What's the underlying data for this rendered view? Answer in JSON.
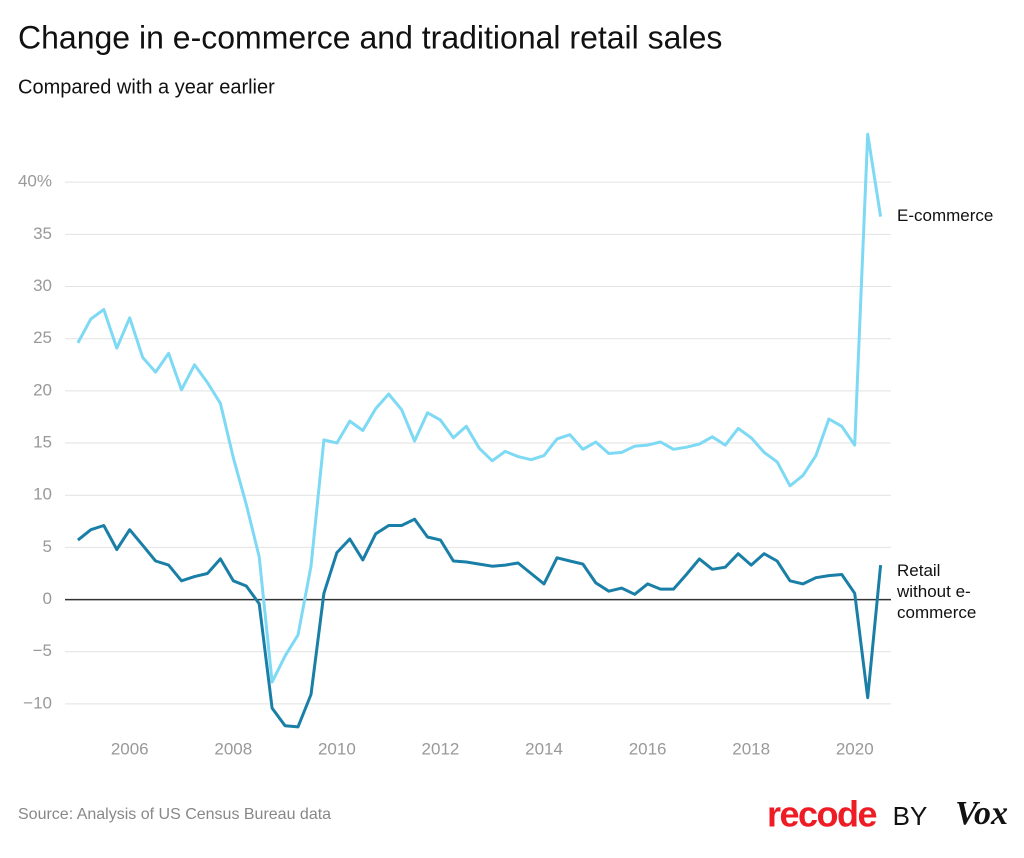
{
  "chart_data": {
    "type": "line",
    "title": "Change in e-commerce and traditional retail sales",
    "subtitle": "Compared with a year earlier",
    "source": "Source: Analysis of US Census Bureau data",
    "credit": {
      "brand": "recode",
      "by": "BY",
      "publisher": "Vox"
    },
    "x": [
      2005,
      2005.25,
      2005.5,
      2005.75,
      2006,
      2006.25,
      2006.5,
      2006.75,
      2007,
      2007.25,
      2007.5,
      2007.75,
      2008,
      2008.25,
      2008.5,
      2008.75,
      2009,
      2009.25,
      2009.5,
      2009.75,
      2010,
      2010.25,
      2010.5,
      2010.75,
      2011,
      2011.25,
      2011.5,
      2011.75,
      2012,
      2012.25,
      2012.5,
      2012.75,
      2013,
      2013.25,
      2013.5,
      2013.75,
      2014,
      2014.25,
      2014.5,
      2014.75,
      2015,
      2015.25,
      2015.5,
      2015.75,
      2016,
      2016.25,
      2016.5,
      2016.75,
      2017,
      2017.25,
      2017.5,
      2017.75,
      2018,
      2018.25,
      2018.5,
      2018.75,
      2019,
      2019.25,
      2019.5,
      2019.75,
      2020,
      2020.25,
      2020.5
    ],
    "series": [
      {
        "name": "E-commerce",
        "color": "#7dd9f4",
        "values": [
          24.6,
          26.9,
          27.8,
          24.1,
          27.0,
          23.2,
          21.8,
          23.6,
          20.1,
          22.5,
          20.8,
          18.8,
          13.6,
          9.1,
          4.1,
          -7.9,
          -5.4,
          -3.4,
          3.2,
          15.3,
          15.0,
          17.1,
          16.2,
          18.3,
          19.7,
          18.2,
          15.2,
          17.9,
          17.2,
          15.5,
          16.6,
          14.5,
          13.3,
          14.2,
          13.7,
          13.4,
          13.8,
          15.4,
          15.8,
          14.4,
          15.1,
          14.0,
          14.1,
          14.7,
          14.8,
          15.1,
          14.4,
          14.6,
          14.9,
          15.6,
          14.8,
          16.4,
          15.5,
          14.1,
          13.2,
          10.9,
          11.9,
          13.8,
          17.3,
          16.6,
          14.8,
          44.6,
          36.7
        ]
      },
      {
        "name": "Retail without e-commerce",
        "color": "#1a7fa6",
        "values": [
          5.7,
          6.7,
          7.1,
          4.8,
          6.7,
          5.2,
          3.7,
          3.3,
          1.8,
          2.2,
          2.5,
          3.9,
          1.8,
          1.3,
          -0.4,
          -10.4,
          -12.1,
          -12.2,
          -9.1,
          0.6,
          4.5,
          5.8,
          3.8,
          6.3,
          7.1,
          7.1,
          7.7,
          6.0,
          5.7,
          3.7,
          3.6,
          3.4,
          3.2,
          3.3,
          3.5,
          2.5,
          1.5,
          4.0,
          3.7,
          3.4,
          1.6,
          0.8,
          1.1,
          0.5,
          1.5,
          1.0,
          1.0,
          2.4,
          3.9,
          2.9,
          3.1,
          4.4,
          3.3,
          4.4,
          3.7,
          1.8,
          1.5,
          2.1,
          2.3,
          2.4,
          0.6,
          -9.4,
          3.3
        ]
      }
    ],
    "xlim": [
      2004.75,
      2020.7
    ],
    "xticks": [
      2006,
      2008,
      2010,
      2012,
      2014,
      2016,
      2018,
      2020
    ],
    "ylim": [
      -12.5,
      45
    ],
    "yticks": [
      {
        "value": -10,
        "label": "−10"
      },
      {
        "value": -5,
        "label": "−5"
      },
      0,
      5,
      10,
      15,
      20,
      25,
      30,
      35,
      {
        "value": 40,
        "label": "40%"
      }
    ],
    "grid": true
  }
}
